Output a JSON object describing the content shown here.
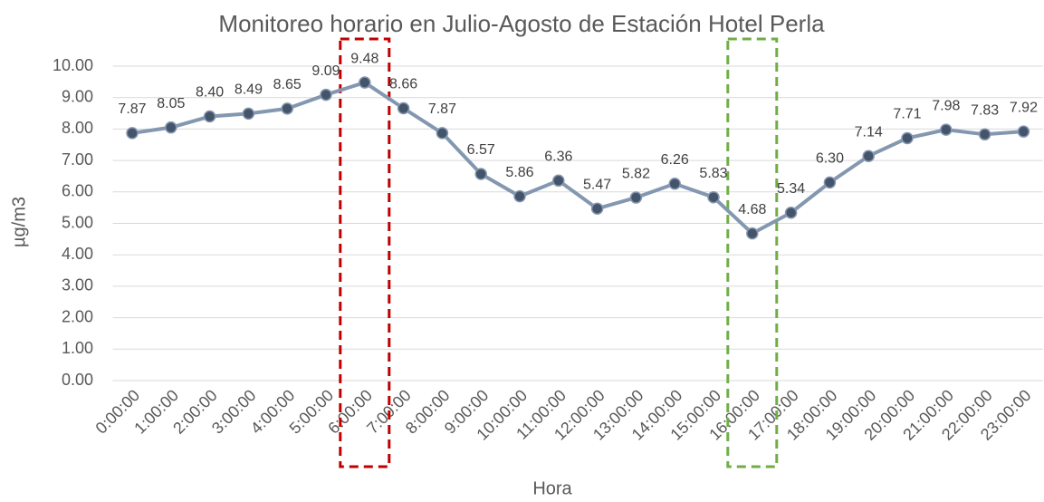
{
  "chart_data": {
    "type": "line",
    "title": "Monitoreo horario en Julio-Agosto de Estación Hotel Perla",
    "x_label": "Hora",
    "y_label": "µg/m3",
    "categories": [
      "0:00:00",
      "1:00:00",
      "2:00:00",
      "3:00:00",
      "4:00:00",
      "5:00:00",
      "6:00:00",
      "7:00:00",
      "8:00:00",
      "9:00:00",
      "10:00:00",
      "11:00:00",
      "12:00:00",
      "13:00:00",
      "14:00:00",
      "15:00:00",
      "16:00:00",
      "17:00:00",
      "18:00:00",
      "19:00:00",
      "20:00:00",
      "21:00:00",
      "22:00:00",
      "23:00:00"
    ],
    "values": [
      7.87,
      8.05,
      8.4,
      8.49,
      8.65,
      9.09,
      9.48,
      8.66,
      7.87,
      6.57,
      5.86,
      6.36,
      5.47,
      5.82,
      6.26,
      5.83,
      4.68,
      5.34,
      6.3,
      7.14,
      7.71,
      7.98,
      7.83,
      7.92
    ],
    "value_labels": [
      "7.87",
      "8.05",
      "8.40",
      "8.49",
      "8.65",
      "9.09",
      "9.48",
      "8.66",
      "7.87",
      "6.57",
      "5.86",
      "6.36",
      "5.47",
      "5.82",
      "6.26",
      "5.83",
      "4.68",
      "5.34",
      "6.30",
      "7.14",
      "7.71",
      "7.98",
      "7.83",
      "7.92"
    ],
    "color": "#8497b0",
    "marker_color": "#44546a",
    "ylim": [
      0,
      10
    ],
    "yticks": [
      {
        "value": 0,
        "label": "0.00"
      },
      {
        "value": 1,
        "label": "1.00"
      },
      {
        "value": 2,
        "label": "2.00"
      },
      {
        "value": 3,
        "label": "3.00"
      },
      {
        "value": 4,
        "label": "4.00"
      },
      {
        "value": 5,
        "label": "5.00"
      },
      {
        "value": 6,
        "label": "6.00"
      },
      {
        "value": 7,
        "label": "7.00"
      },
      {
        "value": 8,
        "label": "8.00"
      },
      {
        "value": 9,
        "label": "9.00"
      },
      {
        "value": 10,
        "label": "10.00"
      }
    ],
    "grid": true
  }
}
